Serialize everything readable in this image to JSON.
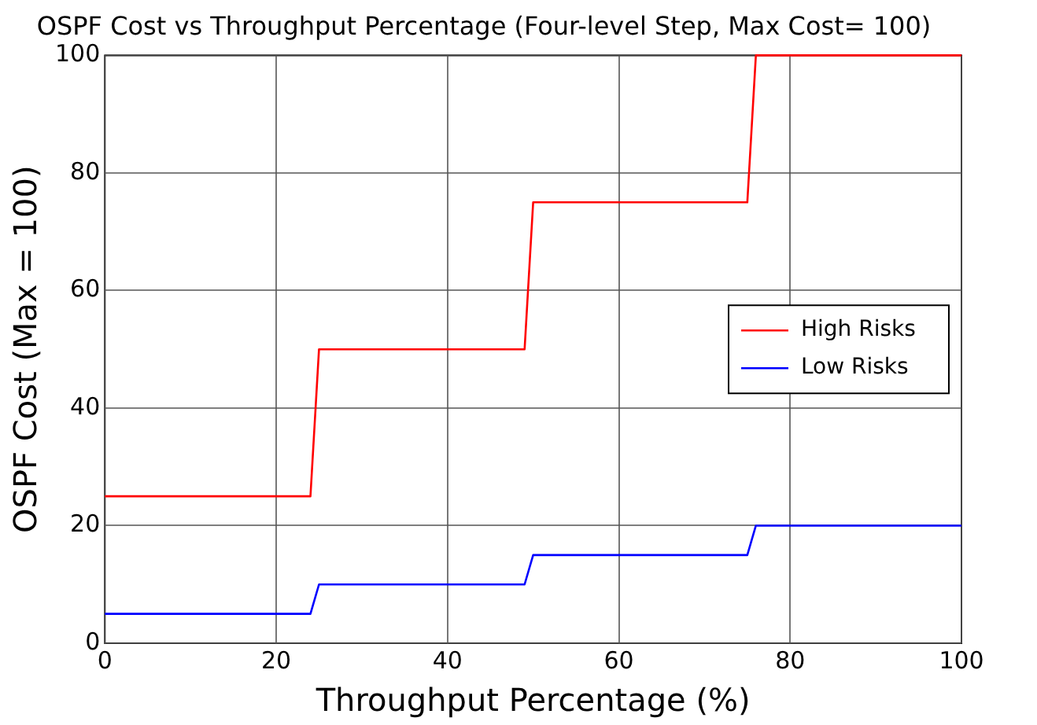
{
  "chart_data": {
    "type": "line",
    "title": "OSPF Cost vs Throughput Percentage (Four-level Step, Max Cost= 100)",
    "xlabel": "Throughput Percentage (%)",
    "ylabel": "OSPF Cost (Max = 100)",
    "x": [
      0,
      24,
      25,
      49,
      50,
      75,
      76,
      100
    ],
    "series": [
      {
        "name": "High Risks",
        "color": "#ff0000",
        "values": [
          25,
          25,
          50,
          50,
          75,
          75,
          100,
          100
        ]
      },
      {
        "name": "Low Risks",
        "color": "#0000ff",
        "values": [
          5,
          5,
          10,
          10,
          15,
          15,
          20,
          20
        ]
      }
    ],
    "xlim": [
      0,
      100
    ],
    "xticks": [
      0,
      20,
      40,
      60,
      80,
      100
    ],
    "ylim": [
      0,
      100
    ],
    "yticks": [
      0,
      20,
      40,
      60,
      80,
      100
    ],
    "grid": true,
    "legend": "right",
    "marker": "none",
    "line_style": "solid"
  }
}
